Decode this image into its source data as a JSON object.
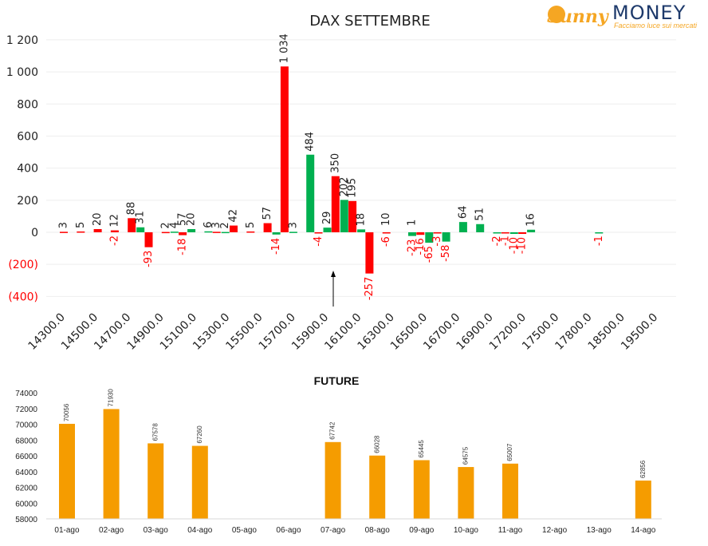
{
  "brand": {
    "name_part1": "Sunny",
    "name_part2": "MONEY",
    "tagline": "Facciamo luce sui mercati"
  },
  "colors": {
    "positive": "#00b050",
    "negative": "#ff0000",
    "future": "#f59c00",
    "text": "#222222"
  },
  "chart_data": [
    {
      "type": "bar",
      "title": "DAX SETTEMBRE",
      "ylim": [
        -400,
        1200
      ],
      "yticks": [
        "(400)",
        "(200)",
        "0",
        "200",
        "400",
        "600",
        "800",
        "1 000",
        "1 200"
      ],
      "ytick_values": [
        -400,
        -200,
        0,
        200,
        400,
        600,
        800,
        1000,
        1200
      ],
      "categories": [
        "14300.0",
        "14500.0",
        "14700.0",
        "14900.0",
        "15100.0",
        "15300.0",
        "15500.0",
        "15700.0",
        "15900.0",
        "16100.0",
        "16300.0",
        "16500.0",
        "16700.0",
        "16900.0",
        "17200.0",
        "17500.0",
        "17800.0",
        "18500.0",
        "19500.0"
      ],
      "grid": true,
      "legend": "none",
      "marker_label": "↑",
      "series": [
        {
          "color": "red",
          "values": [
            {
              "slot": 0,
              "v": 3
            },
            {
              "slot": 1,
              "v": 5
            },
            {
              "slot": 2,
              "v": 20
            },
            {
              "slot": 3,
              "v": 12,
              "neg": -2
            },
            {
              "slot": 4,
              "v": 88
            },
            {
              "slot": 5,
              "v": -93
            },
            {
              "slot": 6,
              "v": 2
            },
            {
              "slot": 7,
              "v": -18,
              "pos": 57
            },
            {
              "slot": 9,
              "v": 3
            },
            {
              "slot": 10,
              "v": 42
            },
            {
              "slot": 11,
              "v": 5
            },
            {
              "slot": 12,
              "v": 57
            },
            {
              "slot": 13,
              "v": 1034
            },
            {
              "slot": 15,
              "v": -4
            },
            {
              "slot": 16,
              "v": 350
            },
            {
              "slot": 17,
              "v": 195
            },
            {
              "slot": 18,
              "v": -257
            },
            {
              "slot": 19,
              "v": -6,
              "pos": 10
            },
            {
              "slot": 21,
              "v": -16
            },
            {
              "slot": 22,
              "v": -3
            },
            {
              "slot": 26,
              "v": -1
            },
            {
              "slot": 27,
              "v": -10
            }
          ]
        },
        {
          "color": "green",
          "values": [
            {
              "slot": 4,
              "v": 31
            },
            {
              "slot": 6,
              "v": 4
            },
            {
              "slot": 7,
              "v": 20
            },
            {
              "slot": 8,
              "v": 6
            },
            {
              "slot": 9,
              "v": 2
            },
            {
              "slot": 12,
              "v": -14
            },
            {
              "slot": 13,
              "v": 3
            },
            {
              "slot": 14,
              "v": 484
            },
            {
              "slot": 15,
              "v": 29
            },
            {
              "slot": 16,
              "v": 202
            },
            {
              "slot": 17,
              "v": 18
            },
            {
              "slot": 20,
              "v": -23,
              "pos": 1
            },
            {
              "slot": 21,
              "v": -65
            },
            {
              "slot": 22,
              "v": -58
            },
            {
              "slot": 23,
              "v": 64
            },
            {
              "slot": 24,
              "v": 51
            },
            {
              "slot": 25,
              "v": -2
            },
            {
              "slot": 26,
              "v": -10
            },
            {
              "slot": 27,
              "v": 16
            },
            {
              "slot": 31,
              "v": -1
            }
          ]
        }
      ]
    },
    {
      "type": "bar",
      "title": "FUTURE",
      "ylim": [
        58000,
        74000
      ],
      "yticks": [
        "58000",
        "60000",
        "62000",
        "64000",
        "66000",
        "68000",
        "70000",
        "72000",
        "74000"
      ],
      "categories": [
        "01-ago",
        "02-ago",
        "03-ago",
        "04-ago",
        "05-ago",
        "06-ago",
        "07-ago",
        "08-ago",
        "09-ago",
        "10-ago",
        "11-ago",
        "12-ago",
        "13-ago",
        "14-ago"
      ],
      "values": [
        70056,
        71930,
        67578,
        67260,
        null,
        null,
        67742,
        66028,
        65445,
        64575,
        65007,
        null,
        null,
        62856
      ],
      "value_labels": [
        "70056",
        "71930",
        "67578",
        "67260",
        "",
        "",
        "67742",
        "66028",
        "65445",
        "64575",
        "65007",
        "",
        "",
        "62856"
      ],
      "grid": false,
      "legend": "none"
    }
  ]
}
